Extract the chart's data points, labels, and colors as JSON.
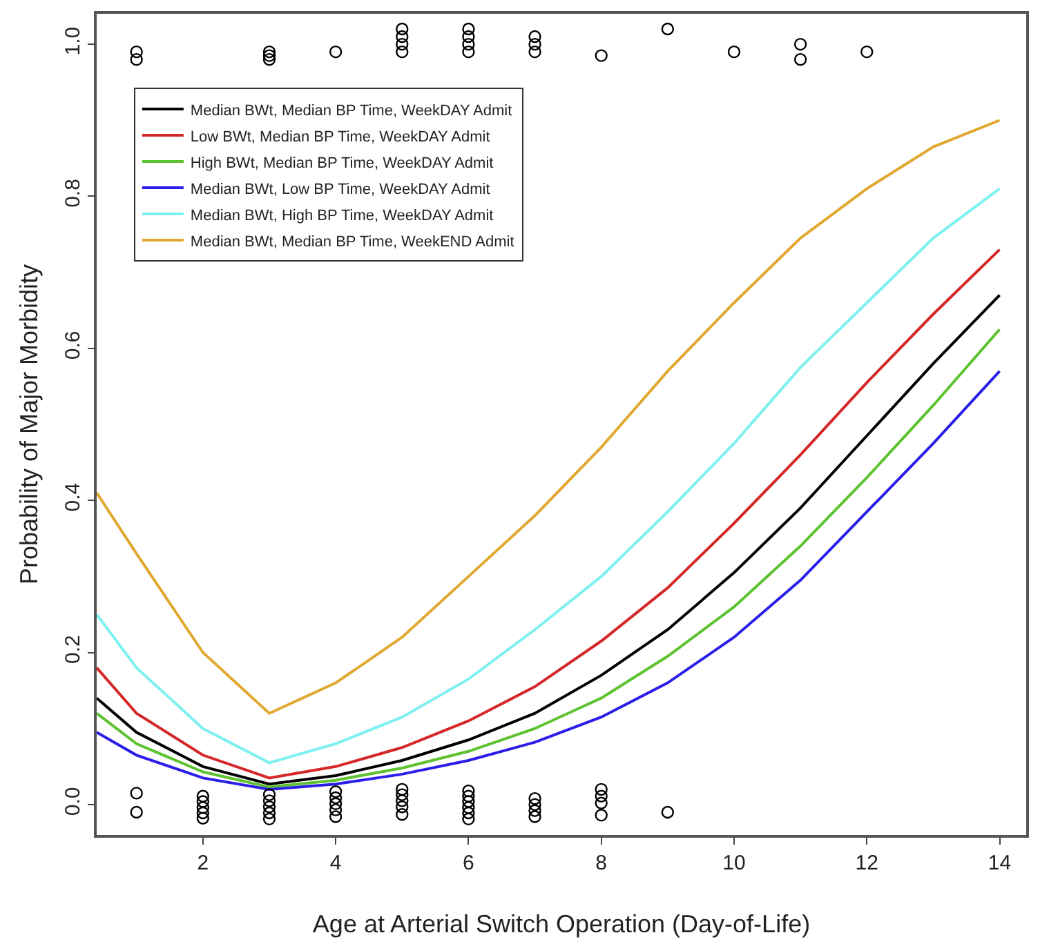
{
  "chart_data": {
    "type": "line",
    "xlabel": "Age at Arterial Switch Operation (Day-of-Life)",
    "ylabel": "Probability of Major Morbidity",
    "xlim": [
      0.4,
      14.4
    ],
    "xticks": [
      2,
      4,
      6,
      8,
      10,
      12,
      14
    ],
    "ylim": [
      -0.04,
      1.04
    ],
    "yticks": [
      {
        "value": 0,
        "label": "0.0"
      },
      0.2,
      0.4,
      0.6,
      0.8,
      {
        "value": 1,
        "label": "1.0"
      }
    ],
    "legend": "top left",
    "line_style": "solid",
    "series": [
      {
        "name": "Median BWt, Median BP Time, WeekDAY Admit",
        "color": "#000000",
        "x": [
          0.4,
          1,
          2,
          3,
          4,
          5,
          6,
          7,
          8,
          9,
          10,
          11,
          12,
          13,
          14
        ],
        "values": [
          0.14,
          0.095,
          0.05,
          0.027,
          0.038,
          0.058,
          0.085,
          0.12,
          0.17,
          0.23,
          0.305,
          0.39,
          0.485,
          0.58,
          0.67
        ]
      },
      {
        "name": "Low BWt, Median BP Time, WeekDAY Admit",
        "color": "#d62728",
        "x": [
          0.4,
          1,
          2,
          3,
          4,
          5,
          6,
          7,
          8,
          9,
          10,
          11,
          12,
          13,
          14
        ],
        "values": [
          0.18,
          0.12,
          0.065,
          0.035,
          0.05,
          0.075,
          0.11,
          0.155,
          0.215,
          0.285,
          0.37,
          0.46,
          0.555,
          0.645,
          0.73
        ]
      },
      {
        "name": "High BWt, Median BP Time, WeekDAY Admit",
        "color": "#5dc22f",
        "x": [
          0.4,
          1,
          2,
          3,
          4,
          5,
          6,
          7,
          8,
          9,
          10,
          11,
          12,
          13,
          14
        ],
        "values": [
          0.12,
          0.08,
          0.043,
          0.023,
          0.032,
          0.048,
          0.07,
          0.1,
          0.14,
          0.195,
          0.26,
          0.34,
          0.43,
          0.525,
          0.625
        ]
      },
      {
        "name": "Median BWt, Low BP Time, WeekDAY Admit",
        "color": "#2a1ee8",
        "x": [
          0.4,
          1,
          2,
          3,
          4,
          5,
          6,
          7,
          8,
          9,
          10,
          11,
          12,
          13,
          14
        ],
        "values": [
          0.095,
          0.065,
          0.035,
          0.02,
          0.027,
          0.04,
          0.058,
          0.082,
          0.115,
          0.16,
          0.22,
          0.295,
          0.385,
          0.475,
          0.57
        ]
      },
      {
        "name": "Median BWt, High BP Time, WeekDAY Admit",
        "color": "#7ff0f0",
        "x": [
          0.4,
          1,
          2,
          3,
          4,
          5,
          6,
          7,
          8,
          9,
          10,
          11,
          12,
          13,
          14
        ],
        "values": [
          0.25,
          0.18,
          0.1,
          0.055,
          0.08,
          0.115,
          0.165,
          0.23,
          0.3,
          0.385,
          0.475,
          0.575,
          0.66,
          0.745,
          0.81
        ]
      },
      {
        "name": "Median BWt, Median BP Time, WeekEND Admit",
        "color": "#e0a830",
        "x": [
          0.4,
          1,
          2,
          3,
          4,
          5,
          6,
          7,
          8,
          9,
          10,
          11,
          12,
          13,
          14
        ],
        "values": [
          0.41,
          0.33,
          0.2,
          0.12,
          0.16,
          0.22,
          0.3,
          0.38,
          0.47,
          0.57,
          0.66,
          0.745,
          0.81,
          0.865,
          0.9
        ]
      },
      {
        "type": "scatter",
        "marker": "circle",
        "color": "#000000",
        "x": [
          1,
          1,
          3,
          3,
          3,
          4,
          5,
          5,
          5,
          5,
          6,
          6,
          6,
          6,
          7,
          7,
          7,
          8,
          9,
          10,
          11,
          11,
          12,
          1,
          1,
          2,
          2,
          2,
          2,
          2,
          3,
          3,
          3,
          3,
          3,
          4,
          4,
          4,
          4,
          4,
          5,
          5,
          5,
          5,
          5,
          6,
          6,
          6,
          6,
          6,
          6,
          7,
          7,
          7,
          7,
          8,
          8,
          8,
          8,
          9
        ],
        "values": [
          0.99,
          0.98,
          0.99,
          0.985,
          0.98,
          0.99,
          1.02,
          1.01,
          1.0,
          0.99,
          1.02,
          1.01,
          1.0,
          0.99,
          1.01,
          1.0,
          0.99,
          0.985,
          1.02,
          0.99,
          1.0,
          0.98,
          0.99,
          0.015,
          -0.01,
          0.011,
          0.004,
          -0.004,
          -0.011,
          -0.018,
          0.013,
          0.005,
          -0.003,
          -0.011,
          -0.019,
          0.017,
          0.009,
          0.001,
          -0.007,
          -0.016,
          0.02,
          0.013,
          0.005,
          -0.003,
          -0.013,
          0.018,
          0.011,
          0.004,
          -0.004,
          -0.011,
          -0.019,
          0.008,
          0.0,
          -0.008,
          -0.016,
          0.02,
          0.011,
          0.002,
          -0.014,
          -0.01
        ]
      }
    ]
  }
}
